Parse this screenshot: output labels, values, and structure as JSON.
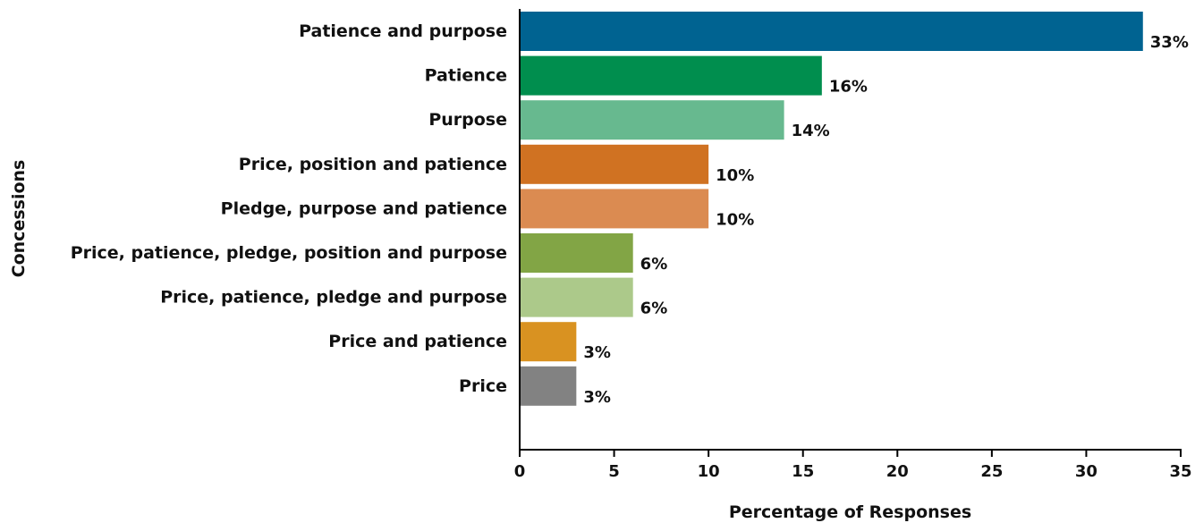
{
  "chart_data": {
    "type": "bar",
    "orientation": "horizontal",
    "title": "",
    "xlabel": "Percentage of Responses",
    "ylabel": "Concessions",
    "xlim": [
      0,
      35
    ],
    "xticks": [
      0,
      5,
      10,
      15,
      20,
      25,
      30,
      35
    ],
    "grid": false,
    "legend": "none",
    "categories": [
      "Patience and purpose",
      "Patience",
      "Purpose",
      "Price, position and patience",
      "Pledge, purpose and patience",
      "Price, patience, pledge, position and purpose",
      "Price, patience, pledge and purpose",
      "Price and patience",
      "Price"
    ],
    "values": [
      33,
      16,
      14,
      10,
      10,
      6,
      6,
      3,
      3
    ],
    "value_labels": [
      "33%",
      "16%",
      "14%",
      "10%",
      "10%",
      "6%",
      "6%",
      "3%",
      "3%"
    ],
    "colors": [
      "#006391",
      "#008e4e",
      "#67b98f",
      "#d07222",
      "#db8b51",
      "#82a545",
      "#acc98a",
      "#d99221",
      "#828282"
    ]
  }
}
